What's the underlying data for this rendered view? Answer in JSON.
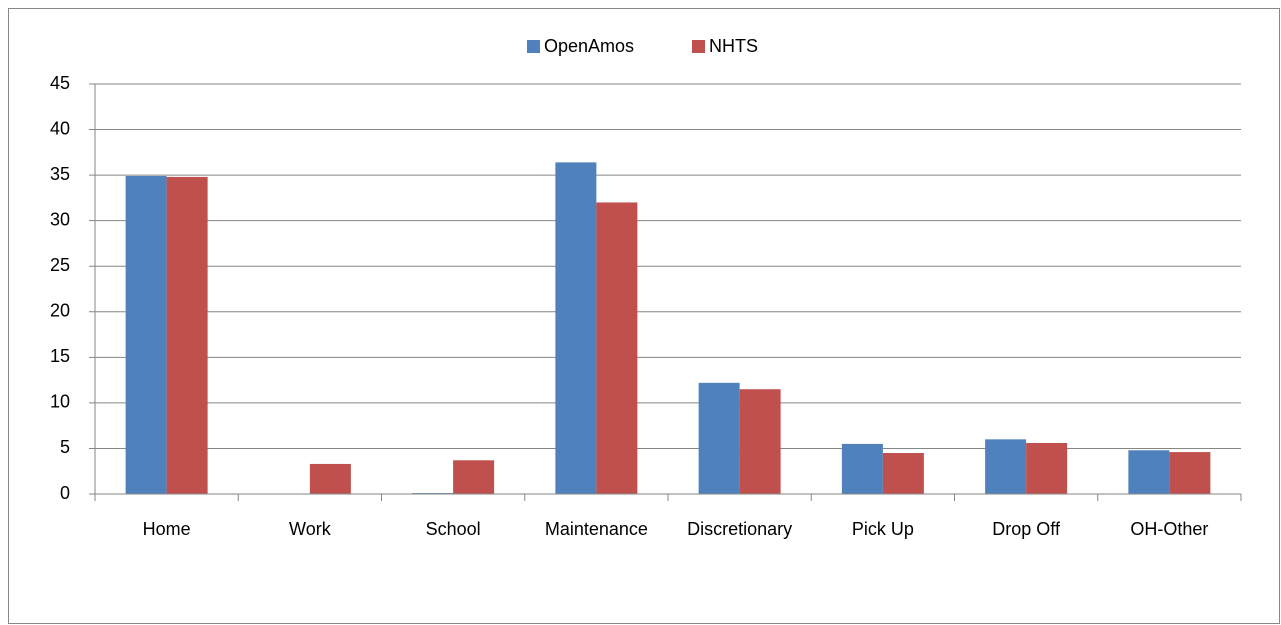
{
  "chart_data": {
    "type": "bar",
    "categories": [
      "Home",
      "Work",
      "School",
      "Maintenance",
      "Discretionary",
      "Pick Up",
      "Drop Off",
      "OH-Other"
    ],
    "series": [
      {
        "name": "OpenAmos",
        "color": "#4f81bd",
        "values": [
          34.9,
          0,
          0.1,
          36.4,
          12.2,
          5.5,
          6.0,
          4.8
        ]
      },
      {
        "name": "NHTS",
        "color": "#c0504d",
        "values": [
          34.8,
          3.3,
          3.7,
          32.0,
          11.5,
          4.5,
          5.6,
          4.6
        ]
      }
    ],
    "ylim": [
      0,
      45
    ],
    "yticks": [
      0,
      5,
      10,
      15,
      20,
      25,
      30,
      35,
      40,
      45
    ],
    "grid": true,
    "legend": "top"
  }
}
